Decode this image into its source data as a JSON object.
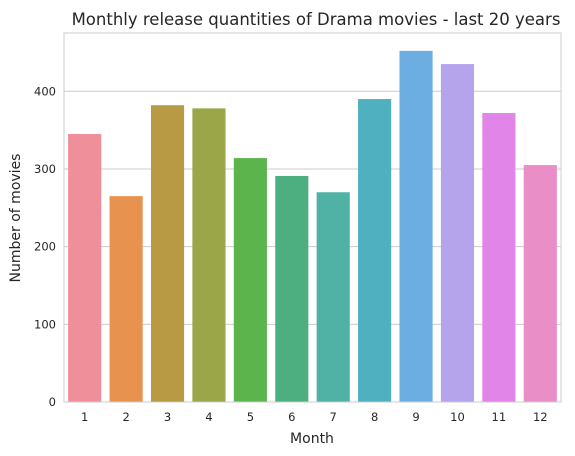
{
  "chart_data": {
    "type": "bar",
    "title": "Monthly release quantities of Drama movies - last 20 years",
    "xlabel": "Month",
    "ylabel": "Number of movies",
    "categories": [
      "1",
      "2",
      "3",
      "4",
      "5",
      "6",
      "7",
      "8",
      "9",
      "10",
      "11",
      "12"
    ],
    "values": [
      345,
      265,
      382,
      378,
      314,
      291,
      270,
      390,
      452,
      435,
      372,
      305
    ],
    "colors": [
      "#ef8f99",
      "#e8924f",
      "#b89a45",
      "#9ba648",
      "#5cb44d",
      "#4daf80",
      "#4fb2a4",
      "#4fb0c0",
      "#6cade2",
      "#b5a4ec",
      "#e186e8",
      "#ea8ec8"
    ],
    "ylim": [
      0,
      475
    ],
    "yticks": [
      0,
      100,
      200,
      300,
      400
    ],
    "grid": "y",
    "legend": "none"
  }
}
